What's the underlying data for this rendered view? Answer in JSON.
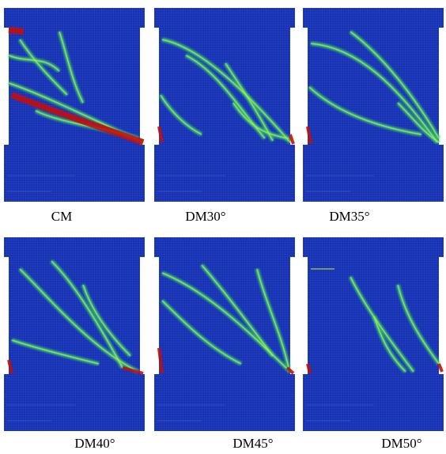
{
  "panels": [
    {
      "label": "CM"
    },
    {
      "label": "DM30°"
    },
    {
      "label": "DM35°"
    },
    {
      "label": "DM40°"
    },
    {
      "label": "DM45°"
    },
    {
      "label": "DM50°"
    }
  ]
}
